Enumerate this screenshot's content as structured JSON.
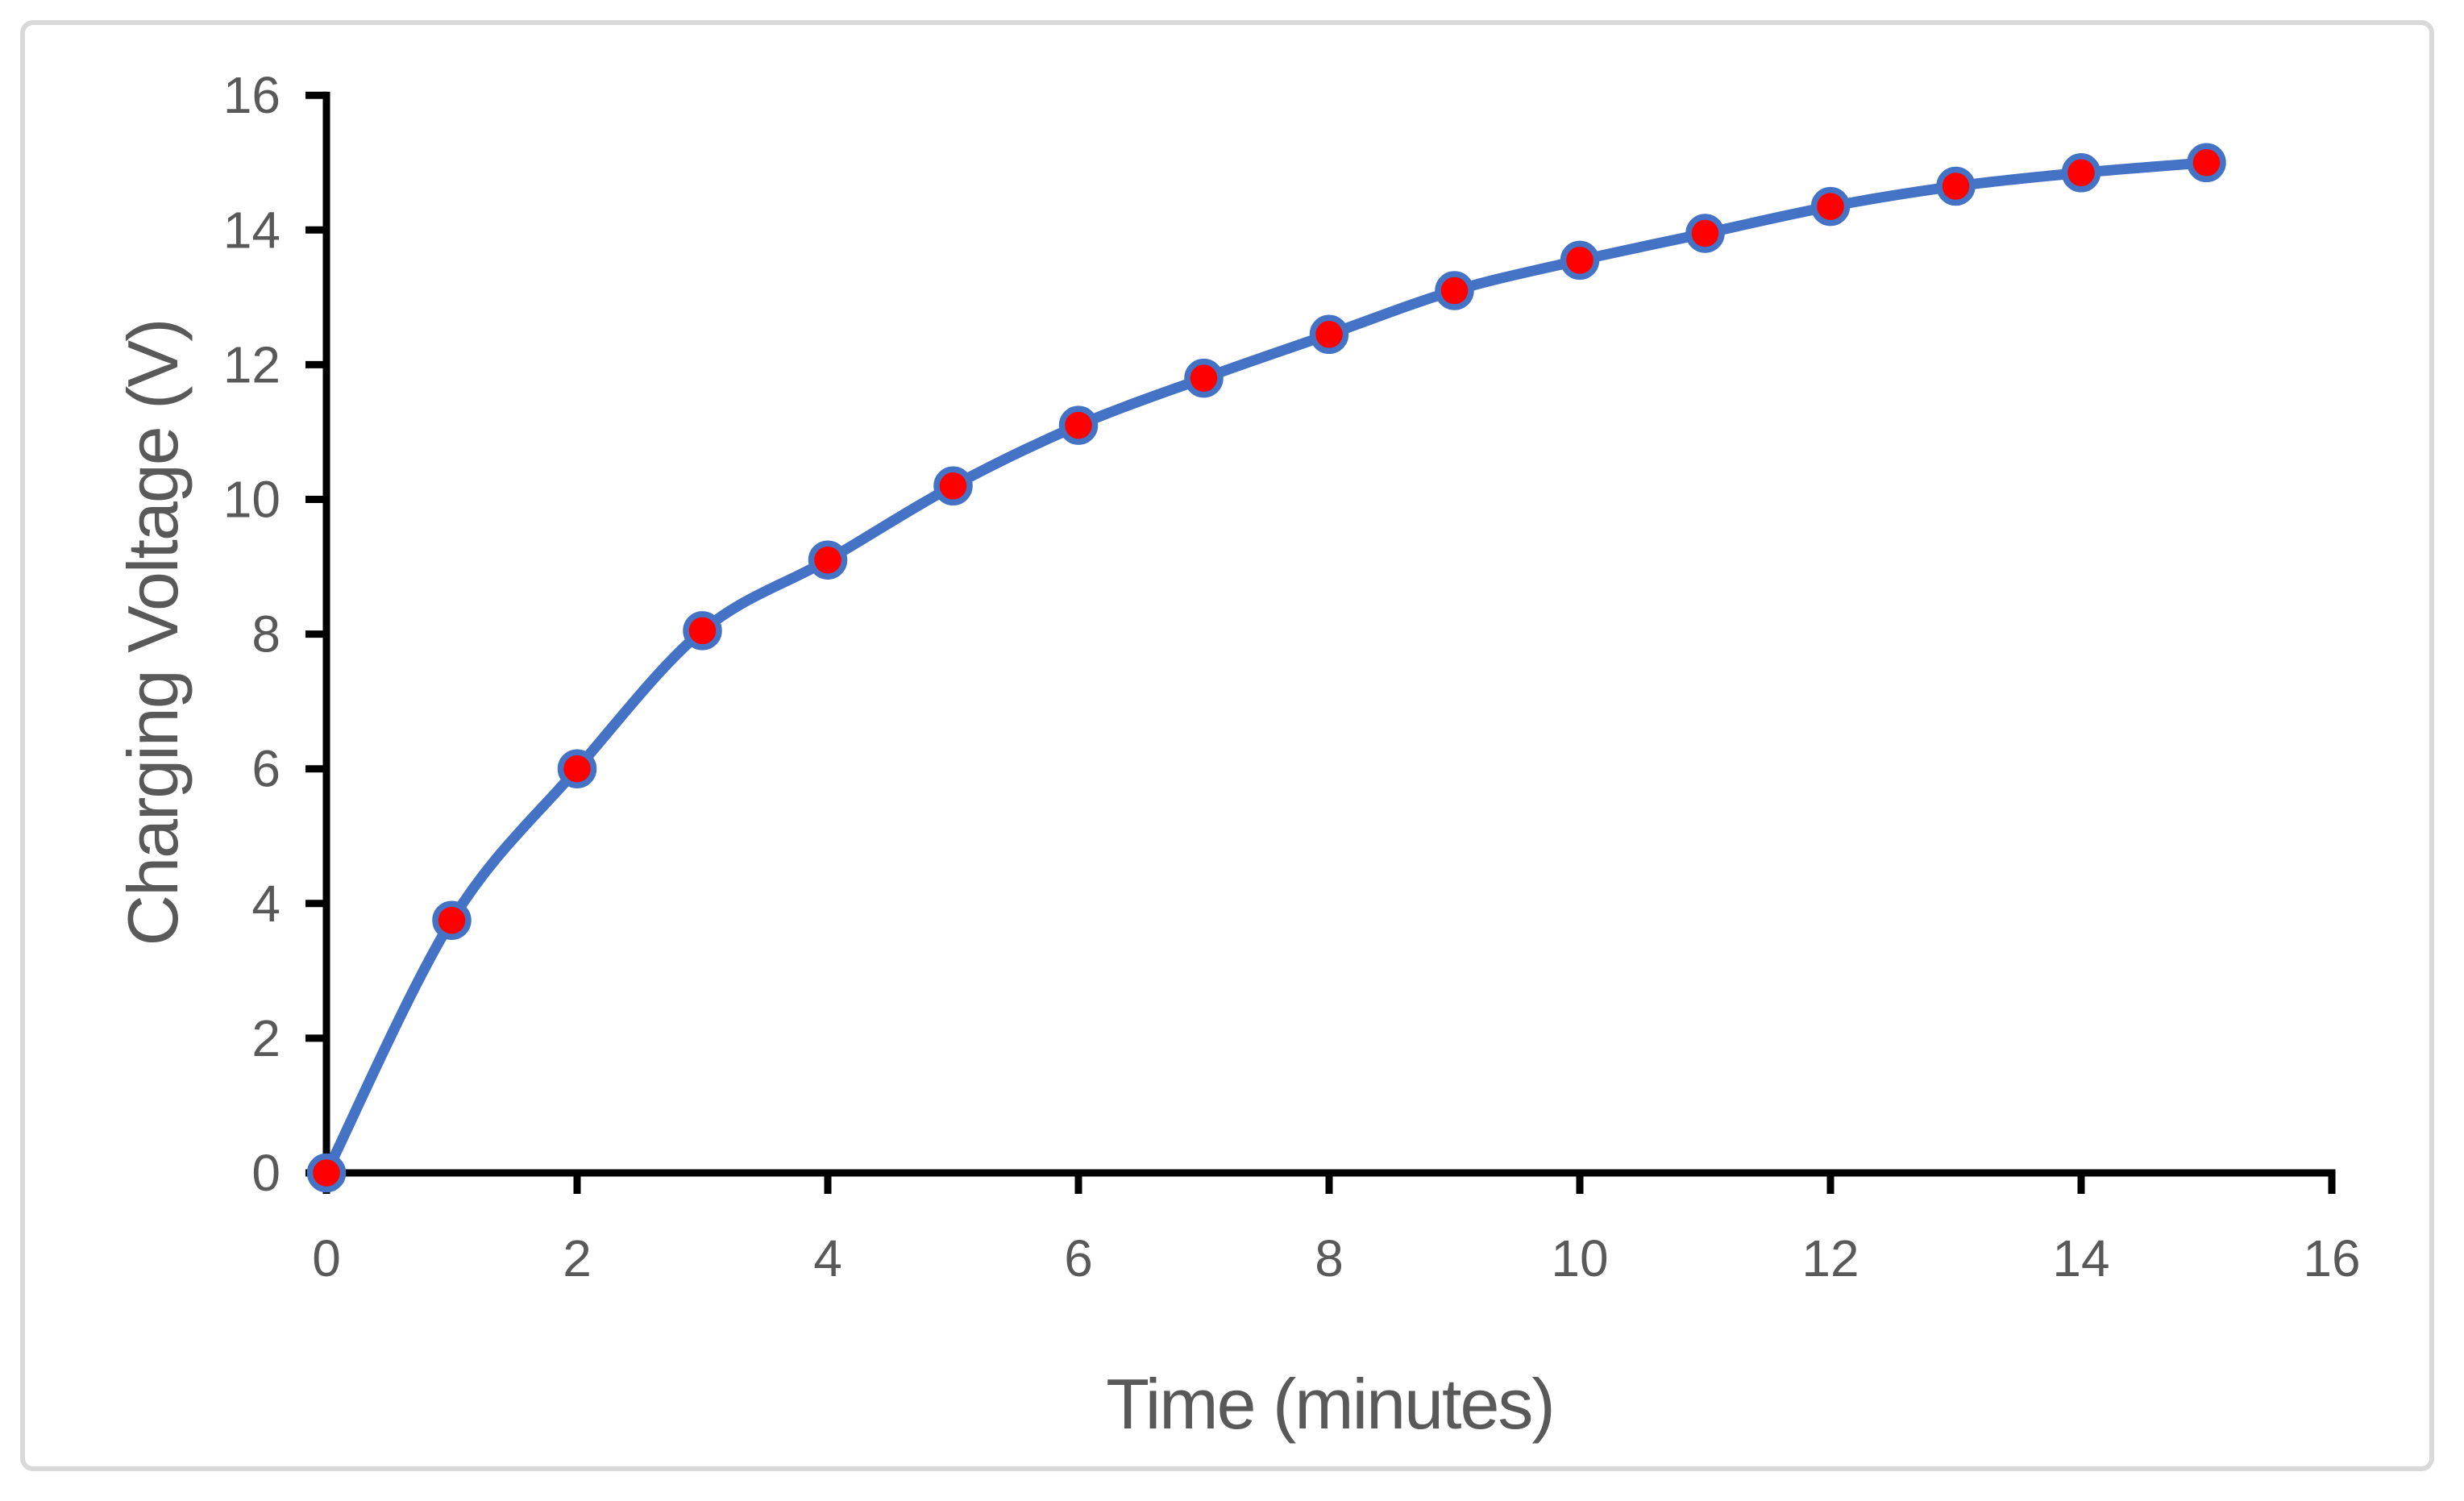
{
  "figure": {
    "background_color": "#FFFFFF",
    "border_color": "#D9D9D9"
  },
  "chart_data": {
    "type": "line",
    "title": "",
    "xlabel": "Time (minutes)",
    "ylabel": "Charging Voltage (V)",
    "x": [
      0,
      1,
      2,
      3,
      4,
      5,
      6,
      7,
      8,
      9,
      10,
      11,
      12,
      13,
      14,
      15
    ],
    "series": [
      {
        "name": "Charging Voltage",
        "values": [
          0,
          3.75,
          6.0,
          8.05,
          9.1,
          10.2,
          11.1,
          11.8,
          12.45,
          13.1,
          13.55,
          13.95,
          14.35,
          14.65,
          14.85,
          15.0
        ]
      }
    ],
    "xlim": [
      0,
      16
    ],
    "ylim": [
      0,
      16
    ],
    "x_ticks": [
      0,
      2,
      4,
      6,
      8,
      10,
      12,
      14,
      16
    ],
    "y_ticks": [
      0,
      2,
      4,
      6,
      8,
      10,
      12,
      14,
      16
    ],
    "grid": false,
    "legend_position": "none",
    "smooth_line": true,
    "line_color": "#4472C4",
    "marker_fill": "#FF0000",
    "marker_stroke": "#4472C4",
    "axis_color": "#000000",
    "tick_label_color": "#595959",
    "axis_title_color": "#595959"
  }
}
